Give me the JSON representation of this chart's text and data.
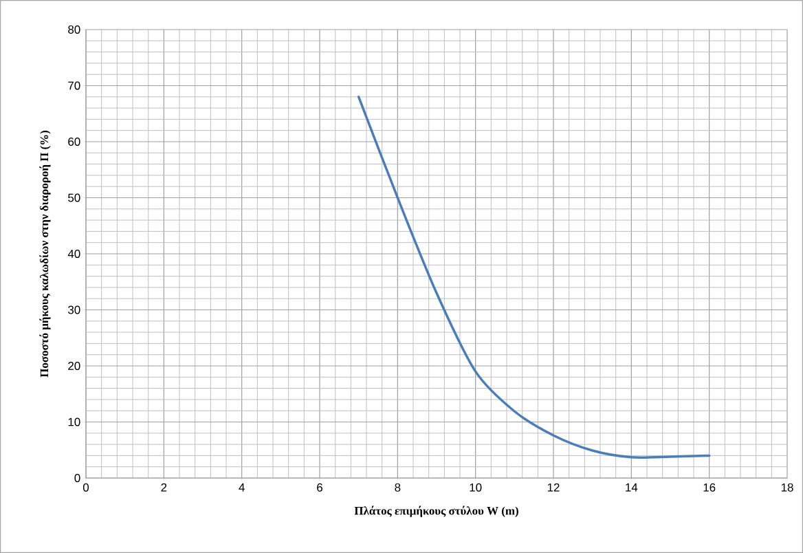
{
  "chart_data": {
    "type": "line",
    "xlabel": "Πλάτος επιμήκους στύλου W (m)",
    "ylabel": "Ποσοστό μήκους καλωδίων στην διαροροή Π (%)",
    "x": [
      7,
      8,
      9,
      10,
      11,
      12,
      13,
      14,
      15,
      16
    ],
    "series": [
      {
        "color": "#4a7ebb",
        "values": [
          68,
          50,
          33,
          19,
          11.9,
          7.6,
          4.9,
          3.7,
          3.8,
          4.0
        ]
      }
    ],
    "xlim": [
      0,
      18
    ],
    "xticks": [
      0,
      2,
      4,
      6,
      8,
      10,
      12,
      14,
      16,
      18
    ],
    "ylim": [
      0,
      80
    ],
    "yticks": [
      0,
      10,
      20,
      30,
      40,
      50,
      60,
      70,
      80
    ],
    "grid": true,
    "marker": "none",
    "line_style": "solid"
  }
}
